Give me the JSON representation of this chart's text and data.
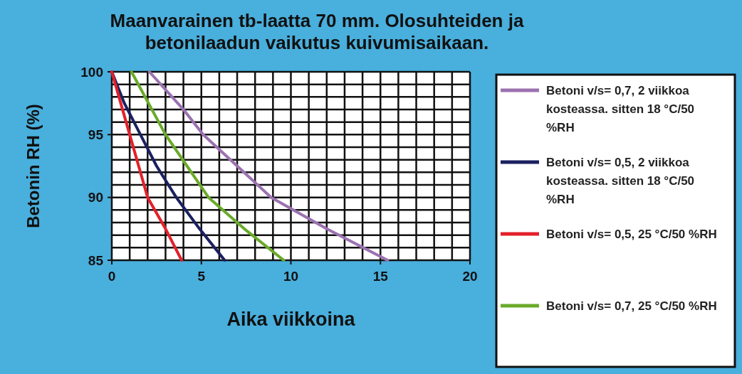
{
  "chart_data": {
    "type": "line",
    "title": "Maanvarainen tb-laatta 70 mm. Olosuhteiden ja betonilaadun vaikutus kuivumisaikaan.",
    "xlabel": "Aika viikkoina",
    "ylabel": "Betonin RH (%)",
    "xlim": [
      0,
      20
    ],
    "ylim": [
      85,
      100
    ],
    "xticks": [
      0,
      {
        "value": 1,
        "label": null
      },
      {
        "value": 2,
        "label": null
      },
      {
        "value": 3,
        "label": null
      },
      {
        "value": 4,
        "label": null
      },
      5,
      {
        "value": 6,
        "label": null
      },
      {
        "value": 7,
        "label": null
      },
      {
        "value": 8,
        "label": null
      },
      {
        "value": 9,
        "label": null
      },
      10,
      {
        "value": 11,
        "label": null
      },
      {
        "value": 12,
        "label": null
      },
      {
        "value": 13,
        "label": null
      },
      {
        "value": 14,
        "label": null
      },
      15,
      {
        "value": 16,
        "label": null
      },
      {
        "value": 17,
        "label": null
      },
      {
        "value": 18,
        "label": null
      },
      {
        "value": 19,
        "label": null
      },
      20
    ],
    "yticks": [
      85,
      {
        "value": 86,
        "label": null
      },
      {
        "value": 87,
        "label": null
      },
      {
        "value": 88,
        "label": null
      },
      {
        "value": 89,
        "label": null
      },
      90,
      {
        "value": 91,
        "label": null
      },
      {
        "value": 92,
        "label": null
      },
      {
        "value": 93,
        "label": null
      },
      {
        "value": 94,
        "label": null
      },
      95,
      {
        "value": 96,
        "label": null
      },
      {
        "value": 97,
        "label": null
      },
      {
        "value": 98,
        "label": null
      },
      {
        "value": 99,
        "label": null
      },
      100
    ],
    "grid": true,
    "legend": "right",
    "series": [
      {
        "name": "Betoni v/s= 0,7, 2 viikkoa kosteassa. sitten 18 °C/50 %RH",
        "color": "#9b72b0",
        "x": [
          2.1,
          4,
          5.1,
          7,
          8.9,
          12,
          15.4
        ],
        "values": [
          100,
          97,
          95,
          92.5,
          90,
          87.5,
          85
        ]
      },
      {
        "name": "Betoni v/s= 0,5, 2 viikkoa kosteassa. sitten 18 °C/50 %RH",
        "color": "#1b2060",
        "x": [
          0,
          0.7,
          1.6,
          2.5,
          3.6,
          4.9,
          6.3
        ],
        "values": [
          100,
          97.5,
          95,
          92.5,
          90,
          87.5,
          85
        ]
      },
      {
        "name": "Betoni v/s= 0,5, 25 °C/50 %RH",
        "color": "#e3202a",
        "x": [
          0,
          1,
          2,
          3,
          3.9
        ],
        "values": [
          100,
          95,
          90,
          87.5,
          85
        ]
      },
      {
        "name": "Betoni v/s= 0,7, 25 °C/50 %RH",
        "color": "#6aaa2a",
        "x": [
          1.1,
          3,
          5.4,
          7.4,
          9.6
        ],
        "values": [
          100,
          95,
          90,
          87.5,
          85
        ]
      }
    ]
  }
}
